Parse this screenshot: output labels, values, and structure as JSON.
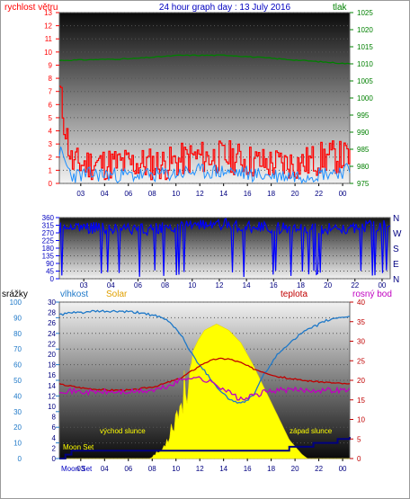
{
  "header": {
    "wind_label": "rychlost větru",
    "title": "24 hour graph day : 13 July 2016",
    "pressure_label": "tlak"
  },
  "colors": {
    "wind": "#ff0000",
    "gust": "#0000ff",
    "pressure": "#008000",
    "direction": "#0000ff",
    "rain": "#000080",
    "humidity": "#1e78c8",
    "solar": "#ffff00",
    "temperature": "#c00000",
    "dewpoint": "#c000c0"
  },
  "legend": {
    "rain": "srážky",
    "humidity": "vlhkost",
    "solar": "Solar",
    "temperature": "teplota",
    "dewpoint": "rosný bod"
  },
  "annotations": {
    "sunrise": "východ slunce",
    "sunset": "západ slunce",
    "moon_set": "Moon Set",
    "moon_rise": "Moon Rise",
    "moon_set_bottom": "Moon Set"
  },
  "chart_data": [
    {
      "type": "line",
      "name": "wind-pressure",
      "xticks": [
        "03",
        "04",
        "06",
        "08",
        "10",
        "12",
        "14",
        "16",
        "18",
        "20",
        "22",
        "00"
      ],
      "left_axis": {
        "label": "rychlost větru",
        "range": [
          0,
          13
        ],
        "ticks": [
          0,
          1,
          2,
          3,
          4,
          5,
          6,
          7,
          8,
          9,
          10,
          11,
          12,
          13
        ]
      },
      "right_axis": {
        "label": "tlak",
        "range": [
          975,
          1025
        ],
        "ticks": [
          975,
          980,
          985,
          990,
          995,
          1000,
          1005,
          1010,
          1015,
          1020,
          1025
        ]
      },
      "series": [
        {
          "name": "wind",
          "axis": "left",
          "mode": "noisy",
          "keys": [
            [
              0,
              7.0
            ],
            [
              0.4,
              4.5
            ],
            [
              1,
              1.5
            ],
            [
              3,
              1.5
            ],
            [
              6,
              1.5
            ],
            [
              9,
              1.5
            ],
            [
              11,
              2.0
            ],
            [
              14,
              2.0
            ],
            [
              17,
              1.5
            ],
            [
              20,
              1.5
            ],
            [
              22,
              2.0
            ],
            [
              24,
              2.0
            ]
          ],
          "amp": 1.3
        },
        {
          "name": "gust",
          "axis": "left",
          "mode": "noisy",
          "keys": [
            [
              0,
              2.5
            ],
            [
              1,
              0.6
            ],
            [
              3,
              0.7
            ],
            [
              6,
              0.6
            ],
            [
              9,
              0.7
            ],
            [
              11,
              0.9
            ],
            [
              14,
              0.9
            ],
            [
              17,
              0.6
            ],
            [
              20,
              0.6
            ],
            [
              22,
              0.8
            ],
            [
              24,
              1.0
            ]
          ],
          "amp": 0.6
        },
        {
          "name": "pressure",
          "axis": "right",
          "mode": "smooth",
          "keys": [
            [
              0,
              1011
            ],
            [
              6,
              1011.5
            ],
            [
              10,
              1012.5
            ],
            [
              14,
              1012.5
            ],
            [
              18,
              1011.5
            ],
            [
              22,
              1010.5
            ],
            [
              24,
              1010
            ]
          ]
        }
      ]
    },
    {
      "type": "scatter",
      "name": "wind-direction",
      "xticks": [
        "03",
        "04",
        "06",
        "08",
        "10",
        "12",
        "14",
        "16",
        "18",
        "20",
        "22",
        "00"
      ],
      "left_axis": {
        "range": [
          0,
          360
        ],
        "ticks": [
          0,
          45,
          90,
          135,
          180,
          225,
          270,
          315,
          360
        ]
      },
      "right_axis": {
        "ticks": [
          "N",
          "W",
          "S",
          "E",
          "N"
        ]
      },
      "series": [
        {
          "name": "direction",
          "mode": "noisy",
          "keys": [
            [
              0,
              300
            ],
            [
              3,
              300
            ],
            [
              6,
              290
            ],
            [
              9,
              310
            ],
            [
              12,
              320
            ],
            [
              15,
              300
            ],
            [
              18,
              290
            ],
            [
              21,
              300
            ],
            [
              24,
              320
            ]
          ],
          "amp": 35,
          "drops": 0.07
        }
      ]
    },
    {
      "type": "line",
      "name": "weather-combined",
      "xticks": [
        "03",
        "04",
        "06",
        "08",
        "10",
        "12",
        "14",
        "16",
        "18",
        "20",
        "22",
        "00"
      ],
      "left_axis_rain": {
        "label": "srážky",
        "range": [
          0,
          30
        ],
        "ticks": [
          0,
          2,
          4,
          6,
          8,
          10,
          12,
          14,
          16,
          18,
          20,
          22,
          24,
          26,
          28,
          30
        ]
      },
      "left_axis_humidity": {
        "label": "vlhkost",
        "range": [
          0,
          100
        ],
        "ticks": [
          0,
          10,
          20,
          30,
          40,
          50,
          60,
          70,
          80,
          90,
          100
        ]
      },
      "right_axis": {
        "label": "teplota",
        "range": [
          0,
          40
        ],
        "ticks": [
          0,
          5,
          10,
          15,
          20,
          25,
          30,
          35,
          40
        ]
      },
      "series": [
        {
          "name": "solar",
          "axis": "solar",
          "mode": "area",
          "keys": [
            [
              0,
              0
            ],
            [
              7.5,
              0
            ],
            [
              7.9,
              3
            ],
            [
              8.5,
              6
            ],
            [
              9,
              16
            ],
            [
              9.5,
              28
            ],
            [
              10,
              38
            ],
            [
              10.5,
              54
            ],
            [
              11,
              68
            ],
            [
              11.5,
              76
            ],
            [
              12,
              82
            ],
            [
              13,
              86
            ],
            [
              14,
              82
            ],
            [
              15,
              74
            ],
            [
              16,
              60
            ],
            [
              17,
              44
            ],
            [
              18,
              28
            ],
            [
              19,
              12
            ],
            [
              20,
              3
            ],
            [
              20.5,
              0
            ],
            [
              24,
              0
            ]
          ]
        },
        {
          "name": "humidity",
          "axis": "humidity",
          "mode": "smooth",
          "keys": [
            [
              0,
              92
            ],
            [
              1,
              93
            ],
            [
              3,
              94
            ],
            [
              5,
              94
            ],
            [
              7,
              93
            ],
            [
              8,
              91
            ],
            [
              9,
              88
            ],
            [
              10,
              80
            ],
            [
              11,
              66
            ],
            [
              12,
              56
            ],
            [
              13,
              46
            ],
            [
              14,
              38
            ],
            [
              15,
              35
            ],
            [
              16,
              40
            ],
            [
              17,
              55
            ],
            [
              18,
              66
            ],
            [
              19,
              74
            ],
            [
              20,
              80
            ],
            [
              21,
              84
            ],
            [
              22,
              88
            ],
            [
              23,
              90
            ],
            [
              24,
              91
            ]
          ]
        },
        {
          "name": "temperature",
          "axis": "temperature",
          "mode": "smooth",
          "keys": [
            [
              0,
              19
            ],
            [
              2,
              18
            ],
            [
              4,
              17.5
            ],
            [
              6,
              17.5
            ],
            [
              8,
              18.5
            ],
            [
              10,
              20.5
            ],
            [
              11,
              22.5
            ],
            [
              12,
              24.5
            ],
            [
              13,
              25.5
            ],
            [
              14,
              25.5
            ],
            [
              15,
              24.5
            ],
            [
              16,
              23
            ],
            [
              18,
              21
            ],
            [
              20,
              20
            ],
            [
              22,
              19.5
            ],
            [
              24,
              19
            ]
          ]
        },
        {
          "name": "dewpoint",
          "axis": "temperature",
          "mode": "noisy",
          "keys": [
            [
              0,
              17.5
            ],
            [
              2,
              17
            ],
            [
              4,
              17
            ],
            [
              6,
              17
            ],
            [
              8,
              17.5
            ],
            [
              9,
              18.5
            ],
            [
              10,
              20
            ],
            [
              11,
              21
            ],
            [
              12,
              20
            ],
            [
              13,
              19
            ],
            [
              14,
              17
            ],
            [
              15,
              15
            ],
            [
              16,
              16
            ],
            [
              17,
              17
            ],
            [
              18,
              17.5
            ],
            [
              20,
              17.5
            ],
            [
              22,
              17.5
            ],
            [
              24,
              17.5
            ]
          ],
          "amp": 0.7
        },
        {
          "name": "rain",
          "axis": "temperature",
          "mode": "step",
          "keys": [
            [
              0,
              0
            ],
            [
              0.5,
              1
            ],
            [
              1,
              2
            ],
            [
              4,
              2
            ],
            [
              16,
              2
            ],
            [
              19,
              3
            ],
            [
              21,
              4
            ],
            [
              23,
              5
            ],
            [
              24,
              5.5
            ]
          ]
        }
      ]
    }
  ]
}
